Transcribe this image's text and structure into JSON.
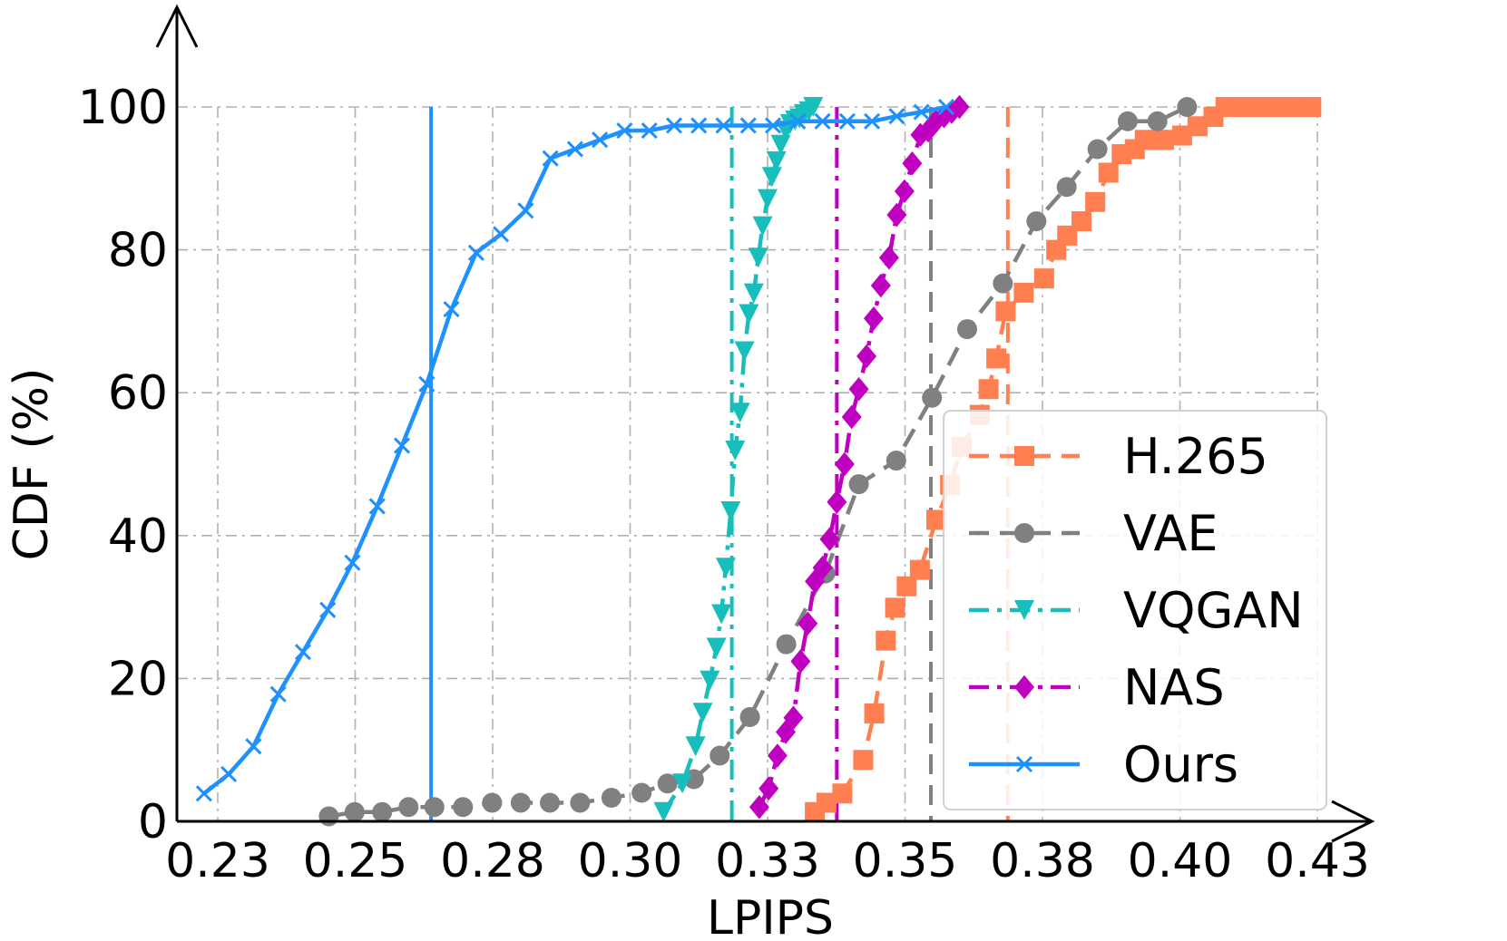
{
  "chart_data": {
    "type": "line",
    "title": "",
    "xlabel": "LPIPS",
    "ylabel": "CDF (%)",
    "xlim": [
      0.225,
      0.435
    ],
    "ylim": [
      0,
      100
    ],
    "xticks": [
      0.23,
      0.255,
      0.28,
      0.305,
      0.33,
      0.355,
      0.38,
      0.405,
      0.43
    ],
    "xtick_labels": [
      "0.23",
      "0.25",
      "0.28",
      "0.30",
      "0.33",
      "0.35",
      "0.38",
      "0.40",
      "0.43"
    ],
    "yticks": [
      0,
      20,
      40,
      60,
      80,
      100
    ],
    "ytick_labels": [
      "0",
      "20",
      "40",
      "60",
      "80",
      "100"
    ],
    "grid": true,
    "legend_position": "lower-right",
    "series": [
      {
        "name": "H.265",
        "color": "#ff7f50",
        "dash": "dashed",
        "marker": "square",
        "x": [
          0.3386,
          0.3407,
          0.3436,
          0.3474,
          0.3494,
          0.3515,
          0.3532,
          0.3553,
          0.3577,
          0.3607,
          0.3632,
          0.3653,
          0.3686,
          0.3702,
          0.3716,
          0.3733,
          0.3766,
          0.3803,
          0.3825,
          0.3845,
          0.3871,
          0.3896,
          0.392,
          0.3944,
          0.3968,
          0.3986,
          0.401,
          0.4021,
          0.4054,
          0.4082,
          0.4111,
          0.4133,
          0.4157,
          0.4176,
          0.4205,
          0.4232,
          0.4259,
          0.4289
        ],
        "y": [
          1.3,
          2.6,
          3.9,
          8.6,
          15.1,
          25.3,
          29.9,
          32.9,
          35.2,
          42.2,
          47.1,
          52.4,
          56.9,
          60.5,
          64.8,
          71.4,
          74.0,
          76.0,
          80.0,
          82.0,
          84.0,
          86.7,
          90.8,
          93.4,
          94.1,
          95.4,
          95.4,
          95.4,
          96.0,
          97.3,
          98.6,
          100.0,
          100.0,
          100.0,
          100.0,
          100.0,
          100.0,
          100.0
        ]
      },
      {
        "name": "VAE",
        "color": "#808080",
        "dash": "dashed",
        "marker": "circle",
        "x": [
          0.2502,
          0.2549,
          0.2599,
          0.2647,
          0.2694,
          0.2746,
          0.2799,
          0.2851,
          0.2904,
          0.2959,
          0.3016,
          0.3071,
          0.3118,
          0.3166,
          0.3213,
          0.3268,
          0.3334,
          0.3405,
          0.3466,
          0.3534,
          0.3599,
          0.3663,
          0.3728,
          0.3789,
          0.3844,
          0.39,
          0.3955,
          0.4009,
          0.4063
        ],
        "y": [
          0.7,
          1.3,
          1.3,
          2.0,
          2.0,
          2.0,
          2.6,
          2.6,
          2.6,
          2.6,
          3.3,
          4.0,
          5.3,
          5.9,
          9.2,
          14.6,
          24.8,
          34.7,
          47.2,
          50.5,
          59.3,
          68.9,
          75.3,
          84.0,
          88.8,
          94.1,
          98.0,
          98.0,
          100.0
        ]
      },
      {
        "name": "VQGAN",
        "color": "#17bebb",
        "dash": "dashdot",
        "marker": "triangle-down",
        "x": [
          0.3111,
          0.3145,
          0.3169,
          0.3182,
          0.3195,
          0.3207,
          0.3216,
          0.3224,
          0.3233,
          0.3241,
          0.325,
          0.3258,
          0.3266,
          0.3275,
          0.3283,
          0.3291,
          0.33,
          0.3308,
          0.3316,
          0.3324,
          0.3333,
          0.3341,
          0.335,
          0.3358,
          0.3366,
          0.3375,
          0.3383
        ],
        "y": [
          1.3,
          5.3,
          10.5,
          15.2,
          19.7,
          24.3,
          29.0,
          35.5,
          43.4,
          51.9,
          57.2,
          65.8,
          71.0,
          73.9,
          78.9,
          83.3,
          87.1,
          90.2,
          92.4,
          94.7,
          96.7,
          97.6,
          98.1,
          98.4,
          99.0,
          99.4,
          100.0
        ]
      },
      {
        "name": "NAS",
        "color": "#c000c0",
        "dash": "dashdot",
        "marker": "diamond",
        "x": [
          0.3285,
          0.3302,
          0.3318,
          0.3333,
          0.3347,
          0.336,
          0.3373,
          0.3386,
          0.34,
          0.3413,
          0.3426,
          0.344,
          0.3453,
          0.3466,
          0.348,
          0.3493,
          0.3506,
          0.3521,
          0.3535,
          0.3549,
          0.3563,
          0.3578,
          0.3592,
          0.3606,
          0.3621,
          0.3635,
          0.3649
        ],
        "y": [
          2.0,
          4.6,
          9.2,
          12.5,
          14.5,
          22.4,
          27.7,
          33.6,
          35.5,
          39.5,
          44.7,
          50.0,
          56.6,
          60.5,
          65.1,
          70.4,
          75.0,
          78.9,
          84.9,
          88.2,
          92.1,
          96.1,
          96.7,
          98.0,
          98.7,
          99.3,
          100.0
        ]
      },
      {
        "name": "Ours",
        "color": "#1e90ff",
        "dash": "solid",
        "marker": "x",
        "x": [
          0.2275,
          0.232,
          0.2365,
          0.241,
          0.2455,
          0.25,
          0.2545,
          0.259,
          0.2635,
          0.268,
          0.2725,
          0.277,
          0.2815,
          0.286,
          0.2905,
          0.295,
          0.2995,
          0.304,
          0.3085,
          0.313,
          0.3175,
          0.322,
          0.3265,
          0.331,
          0.3355,
          0.34,
          0.3445,
          0.349,
          0.3535,
          0.358,
          0.3625
        ],
        "y": [
          3.9,
          6.6,
          10.5,
          17.8,
          23.7,
          29.6,
          36.2,
          44.1,
          52.6,
          61.2,
          71.7,
          79.6,
          82.2,
          85.5,
          92.8,
          94.1,
          95.4,
          96.7,
          96.7,
          97.4,
          97.4,
          97.4,
          97.4,
          97.4,
          98.0,
          98.0,
          98.0,
          98.0,
          98.7,
          99.3,
          100.0
        ]
      }
    ],
    "vertical_lines": [
      {
        "x": 0.2688,
        "color": "#1e90ff",
        "dash": "solid"
      },
      {
        "x": 0.3235,
        "color": "#17bebb",
        "dash": "dashdot"
      },
      {
        "x": 0.3426,
        "color": "#c000c0",
        "dash": "dashdot"
      },
      {
        "x": 0.3597,
        "color": "#808080",
        "dash": "dashed"
      },
      {
        "x": 0.3737,
        "color": "#ff7f50",
        "dash": "dashed"
      }
    ]
  }
}
